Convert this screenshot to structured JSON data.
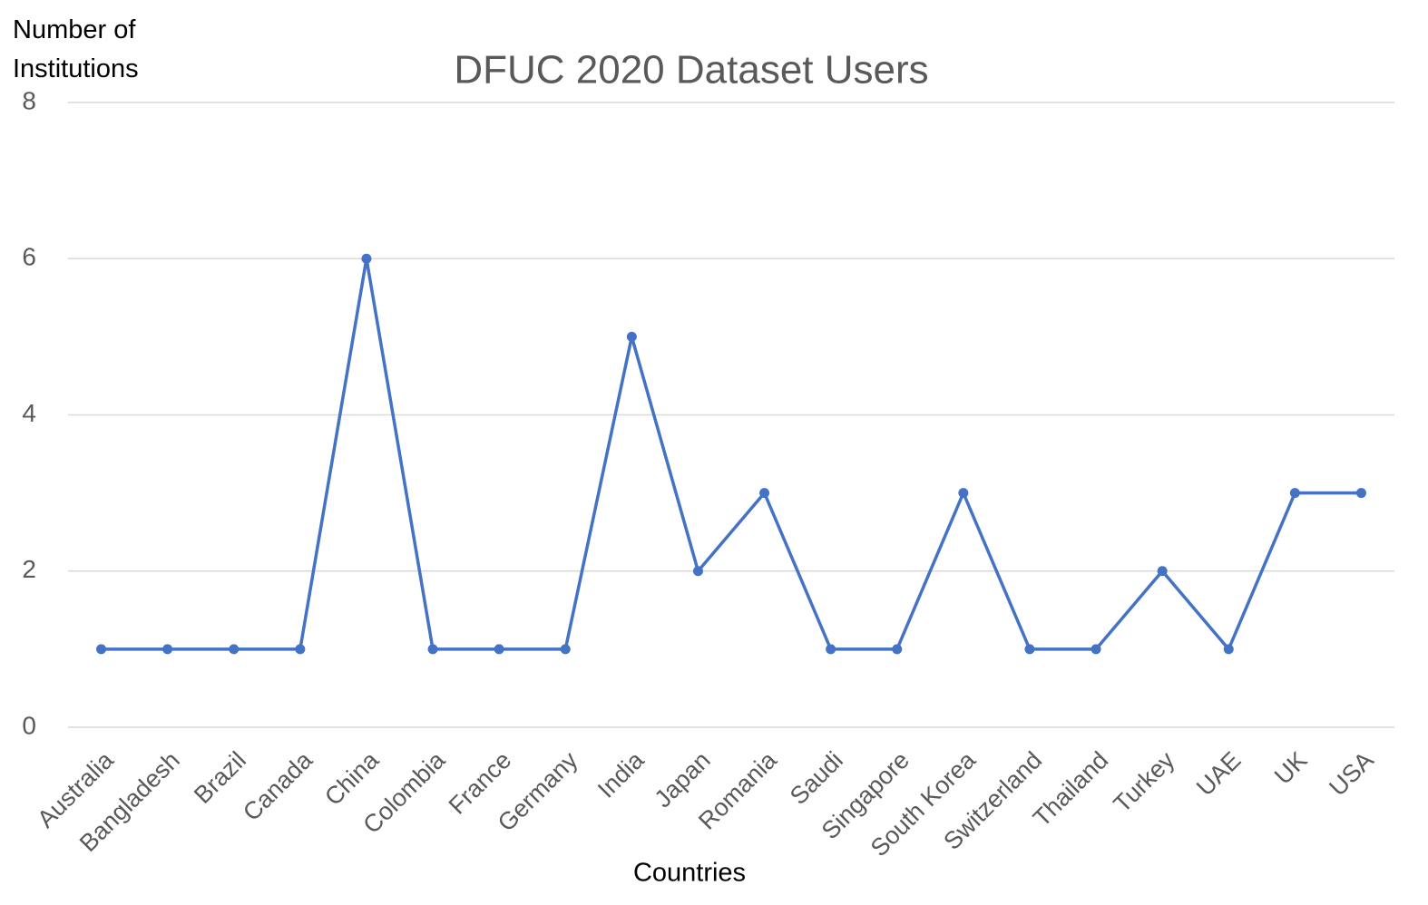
{
  "chart_data": {
    "type": "line",
    "title": "DFUC 2020 Dataset Users",
    "y_label": "Number of Institutions",
    "x_label": "Countries",
    "categories": [
      "Australia",
      "Bangladesh",
      "Brazil",
      "Canada",
      "China",
      "Colombia",
      "France",
      "Germany",
      "India",
      "Japan",
      "Romania",
      "Saudi",
      "Singapore",
      "South Korea",
      "Switzerland",
      "Thailand",
      "Turkey",
      "UAE",
      "UK",
      "USA"
    ],
    "series": [
      {
        "name": "Number of Institutions",
        "color": "#4472c4",
        "values": [
          1,
          1,
          1,
          1,
          6,
          1,
          1,
          1,
          5,
          2,
          3,
          1,
          1,
          3,
          1,
          1,
          2,
          1,
          3,
          3
        ]
      }
    ],
    "ylim": [
      0,
      8
    ],
    "yticks": [
      0,
      2,
      4,
      6,
      8
    ],
    "grid": true
  }
}
